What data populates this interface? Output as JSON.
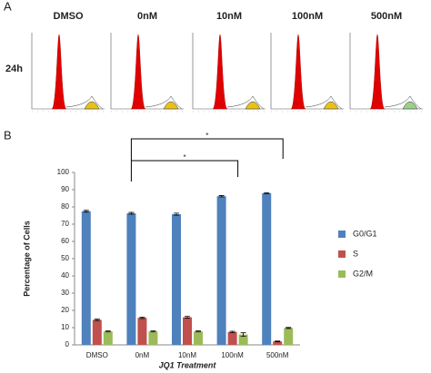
{
  "panel_a": {
    "label": "A",
    "row_label": "24h",
    "columns": [
      "DMSO",
      "0nM",
      "10nM",
      "100nM",
      "500nM"
    ]
  },
  "chart_data": {
    "type": "bar",
    "panel_label": "B",
    "categories": [
      "DMSO",
      "0nM",
      "10nM",
      "100nM",
      "500nM"
    ],
    "series": [
      {
        "name": "G0/G1",
        "color": "#4f81bd",
        "values": [
          77.5,
          76.3,
          75.8,
          86.2,
          88.0
        ],
        "errors": [
          0.5,
          0.5,
          0.6,
          0.4,
          0.3
        ]
      },
      {
        "name": "S",
        "color": "#c0504d",
        "values": [
          14.5,
          15.7,
          16.0,
          7.5,
          2.0
        ],
        "errors": [
          0.4,
          0.4,
          0.5,
          0.4,
          0.2
        ]
      },
      {
        "name": "G2/M",
        "color": "#9bbb59",
        "values": [
          7.8,
          7.8,
          7.8,
          6.0,
          9.8
        ],
        "errors": [
          0.3,
          0.3,
          0.3,
          1.0,
          0.3
        ]
      }
    ],
    "ylim": [
      0,
      100
    ],
    "yticks": [
      0,
      10,
      20,
      30,
      40,
      50,
      60,
      70,
      80,
      90,
      100
    ],
    "ylabel": "Percentage of Cells",
    "xlabel": "JQ1 Treatment",
    "annotations": [
      "*",
      "*"
    ]
  }
}
